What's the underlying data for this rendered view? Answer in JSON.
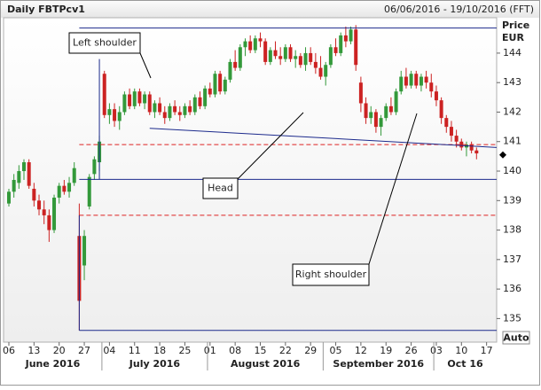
{
  "chart_data": {
    "type": "candlestick",
    "title": "Daily FBTPcv1",
    "subtitle": "06/06/2016 - 19/10/2016 (FFT)",
    "y_label": "Price",
    "y_unit": "EUR",
    "auto_label": "Auto",
    "up_color": "#33993a",
    "down_color": "#cc2222",
    "ylim": [
      134.2,
      145.2
    ],
    "yticks": [
      135,
      136,
      137,
      138,
      139,
      140,
      141,
      142,
      143,
      144
    ],
    "x": [
      "2016-06-06",
      "2016-06-07",
      "2016-06-08",
      "2016-06-09",
      "2016-06-10",
      "2016-06-13",
      "2016-06-14",
      "2016-06-15",
      "2016-06-16",
      "2016-06-17",
      "2016-06-20",
      "2016-06-21",
      "2016-06-22",
      "2016-06-23",
      "2016-06-24",
      "2016-06-27",
      "2016-06-28",
      "2016-06-29",
      "2016-06-30",
      "2016-07-01",
      "2016-07-04",
      "2016-07-05",
      "2016-07-06",
      "2016-07-07",
      "2016-07-08",
      "2016-07-11",
      "2016-07-12",
      "2016-07-13",
      "2016-07-14",
      "2016-07-15",
      "2016-07-18",
      "2016-07-19",
      "2016-07-20",
      "2016-07-21",
      "2016-07-22",
      "2016-07-25",
      "2016-07-26",
      "2016-07-27",
      "2016-07-28",
      "2016-07-29",
      "2016-08-01",
      "2016-08-02",
      "2016-08-03",
      "2016-08-04",
      "2016-08-05",
      "2016-08-08",
      "2016-08-09",
      "2016-08-10",
      "2016-08-11",
      "2016-08-12",
      "2016-08-15",
      "2016-08-16",
      "2016-08-17",
      "2016-08-18",
      "2016-08-19",
      "2016-08-22",
      "2016-08-23",
      "2016-08-24",
      "2016-08-25",
      "2016-08-26",
      "2016-08-29",
      "2016-08-30",
      "2016-08-31",
      "2016-09-01",
      "2016-09-02",
      "2016-09-05",
      "2016-09-06",
      "2016-09-07",
      "2016-09-08",
      "2016-09-09",
      "2016-09-12",
      "2016-09-13",
      "2016-09-14",
      "2016-09-15",
      "2016-09-16",
      "2016-09-19",
      "2016-09-20",
      "2016-09-21",
      "2016-09-22",
      "2016-09-23",
      "2016-09-26",
      "2016-09-27",
      "2016-09-28",
      "2016-09-29",
      "2016-09-30",
      "2016-10-03",
      "2016-10-04",
      "2016-10-05",
      "2016-10-06",
      "2016-10-07",
      "2016-10-10",
      "2016-10-11",
      "2016-10-12",
      "2016-10-13"
    ],
    "open": [
      138.9,
      139.3,
      139.6,
      140.0,
      140.3,
      139.4,
      139.0,
      138.7,
      138.5,
      138.0,
      139.1,
      139.5,
      139.3,
      139.6,
      137.8,
      136.8,
      138.8,
      139.9,
      140.3,
      143.3,
      141.9,
      142.1,
      141.7,
      142.0,
      142.6,
      142.2,
      142.7,
      142.3,
      142.6,
      142.0,
      142.3,
      142.0,
      141.8,
      142.2,
      142.0,
      141.9,
      142.2,
      142.0,
      142.5,
      142.2,
      142.8,
      142.6,
      143.3,
      142.7,
      143.1,
      143.7,
      143.5,
      144.2,
      144.4,
      144.1,
      144.5,
      144.4,
      143.7,
      144.1,
      143.9,
      143.8,
      144.2,
      143.8,
      143.9,
      143.6,
      144.0,
      143.7,
      143.5,
      143.2,
      143.6,
      144.2,
      144.0,
      144.6,
      144.4,
      144.8,
      143.0,
      142.3,
      141.8,
      142.0,
      141.5,
      141.8,
      142.2,
      142.0,
      142.7,
      143.2,
      142.9,
      143.3,
      142.9,
      143.2,
      143.0,
      142.7,
      142.4,
      141.8,
      141.5,
      141.2,
      141.0,
      140.8,
      140.9,
      140.7
    ],
    "high": [
      139.4,
      139.9,
      140.2,
      140.4,
      140.4,
      139.6,
      139.2,
      139.0,
      138.7,
      139.2,
      139.6,
      139.7,
      139.8,
      140.3,
      138.9,
      138.0,
      139.9,
      140.5,
      141.2,
      143.4,
      142.3,
      142.3,
      142.2,
      142.7,
      142.8,
      142.8,
      142.8,
      142.7,
      142.7,
      142.4,
      142.5,
      142.2,
      142.3,
      142.4,
      142.2,
      142.3,
      142.4,
      142.6,
      142.7,
      142.9,
      143.0,
      143.4,
      143.4,
      143.2,
      143.8,
      144.1,
      144.3,
      144.5,
      144.6,
      144.6,
      144.7,
      144.5,
      144.2,
      144.4,
      144.2,
      144.3,
      144.3,
      144.1,
      144.0,
      144.2,
      144.2,
      144.0,
      143.9,
      143.7,
      144.3,
      144.5,
      144.7,
      144.9,
      144.9,
      144.95,
      143.2,
      142.5,
      142.2,
      142.1,
      141.9,
      142.3,
      142.5,
      142.8,
      143.4,
      143.5,
      143.4,
      143.4,
      143.3,
      143.4,
      143.3,
      142.9,
      142.5,
      141.9,
      141.7,
      141.4,
      141.1,
      141.0,
      141.0,
      140.8
    ],
    "low": [
      138.8,
      139.1,
      139.4,
      139.7,
      139.4,
      138.8,
      138.5,
      138.2,
      137.6,
      137.9,
      138.9,
      139.2,
      139.1,
      139.5,
      134.6,
      136.3,
      138.7,
      139.7,
      140.0,
      141.8,
      141.6,
      141.5,
      141.4,
      141.9,
      142.1,
      142.1,
      142.2,
      142.1,
      141.9,
      141.8,
      141.9,
      141.6,
      141.7,
      141.9,
      141.7,
      141.8,
      141.9,
      141.9,
      142.1,
      142.1,
      142.5,
      142.5,
      142.6,
      142.6,
      143.0,
      143.4,
      143.4,
      143.9,
      144.0,
      144.0,
      144.2,
      143.6,
      143.6,
      143.8,
      143.6,
      143.7,
      143.7,
      143.5,
      143.5,
      143.4,
      143.6,
      143.3,
      143.1,
      142.9,
      143.5,
      143.9,
      143.9,
      144.2,
      144.3,
      143.4,
      142.0,
      141.6,
      141.6,
      141.3,
      141.2,
      141.7,
      141.9,
      141.9,
      142.6,
      142.8,
      142.8,
      142.8,
      142.7,
      142.8,
      142.5,
      142.2,
      141.6,
      141.3,
      141.0,
      140.8,
      140.7,
      140.5,
      140.6,
      140.4
    ],
    "close": [
      139.3,
      139.7,
      140.0,
      140.3,
      139.5,
      139.0,
      138.7,
      138.5,
      138.0,
      139.1,
      139.5,
      139.3,
      139.6,
      140.1,
      135.6,
      137.8,
      139.8,
      140.4,
      141.0,
      141.9,
      142.1,
      141.7,
      142.0,
      142.6,
      142.2,
      142.7,
      142.3,
      142.6,
      142.0,
      142.3,
      142.0,
      141.8,
      142.2,
      142.0,
      141.9,
      142.2,
      142.0,
      142.5,
      142.2,
      142.8,
      142.6,
      143.3,
      142.7,
      143.1,
      143.7,
      143.5,
      144.2,
      144.4,
      144.1,
      144.5,
      144.4,
      143.7,
      144.1,
      143.9,
      143.8,
      144.2,
      143.8,
      143.9,
      143.6,
      144.0,
      143.7,
      143.5,
      143.2,
      143.6,
      144.2,
      144.0,
      144.6,
      144.4,
      144.8,
      143.6,
      142.3,
      141.8,
      142.0,
      141.5,
      141.8,
      142.2,
      142.0,
      142.7,
      143.2,
      142.9,
      143.3,
      142.9,
      143.2,
      143.0,
      142.7,
      142.4,
      141.8,
      141.5,
      141.2,
      141.0,
      140.8,
      140.9,
      140.7,
      140.6
    ],
    "xticks": [
      {
        "value": "2016-06-06",
        "label": "06"
      },
      {
        "value": "2016-06-13",
        "label": "13"
      },
      {
        "value": "2016-06-20",
        "label": "20"
      },
      {
        "value": "2016-06-27",
        "label": "27"
      },
      {
        "value": "2016-07-04",
        "label": "04"
      },
      {
        "value": "2016-07-11",
        "label": "11"
      },
      {
        "value": "2016-07-18",
        "label": "18"
      },
      {
        "value": "2016-07-25",
        "label": "25"
      },
      {
        "value": "2016-08-01",
        "label": "01"
      },
      {
        "value": "2016-08-08",
        "label": "08"
      },
      {
        "value": "2016-08-15",
        "label": "15"
      },
      {
        "value": "2016-08-22",
        "label": "22"
      },
      {
        "value": "2016-08-29",
        "label": "29"
      },
      {
        "value": "2016-09-05",
        "label": "05"
      },
      {
        "value": "2016-09-12",
        "label": "12"
      },
      {
        "value": "2016-09-19",
        "label": "19"
      },
      {
        "value": "2016-09-26",
        "label": "26"
      },
      {
        "value": "2016-10-03",
        "label": "03"
      },
      {
        "value": "2016-10-10",
        "label": "10"
      },
      {
        "value": "2016-10-17",
        "label": "17"
      }
    ],
    "month_labels": [
      {
        "value": "2016-06-01",
        "label": "June 2016"
      },
      {
        "value": "2016-07-01",
        "label": "July 2016"
      },
      {
        "value": "2016-08-01",
        "label": "August 2016"
      },
      {
        "value": "2016-09-01",
        "label": "September 2016"
      },
      {
        "value": "2016-10-01",
        "label": "Oct 16"
      }
    ],
    "lines": [
      {
        "start": {
          "x": "2016-06-24",
          "y": 144.85
        },
        "end": {
          "x": "2016-10-19",
          "y": 144.85
        },
        "color": "#1c2a8c",
        "style": "solid"
      },
      {
        "start": {
          "x": "2016-06-24",
          "y": 139.72
        },
        "end": {
          "x": "2016-10-19",
          "y": 139.72
        },
        "color": "#1c2a8c",
        "style": "solid"
      },
      {
        "start": {
          "x": "2016-06-24",
          "y": 134.6
        },
        "end": {
          "x": "2016-10-19",
          "y": 134.6
        },
        "color": "#1c2a8c",
        "style": "solid"
      },
      {
        "start": {
          "x": "2016-06-24",
          "y": 140.9
        },
        "end": {
          "x": "2016-10-19",
          "y": 140.9
        },
        "color": "#dd2222",
        "style": "dashed"
      },
      {
        "start": {
          "x": "2016-06-24",
          "y": 138.5
        },
        "end": {
          "x": "2016-10-19",
          "y": 138.5
        },
        "color": "#dd2222",
        "style": "dashed"
      },
      {
        "start": {
          "x": "2016-07-14",
          "y": 141.45
        },
        "end": {
          "x": "2016-10-19",
          "y": 140.8
        },
        "color": "#1c2a8c",
        "style": "solid"
      },
      {
        "start": {
          "x": "2016-06-24",
          "y": 138.5
        },
        "end": {
          "x": "2016-06-24",
          "y": 134.6
        },
        "color": "#1c2a8c",
        "style": "solid"
      },
      {
        "start": {
          "x": "2016-06-30",
          "y": 143.8
        },
        "end": {
          "x": "2016-06-30",
          "y": 139.72
        },
        "color": "#1c2a8c",
        "style": "solid"
      }
    ],
    "annotations": [
      "Left shoulder",
      "Head",
      "Right shoulder"
    ],
    "current_price": 140.55
  }
}
